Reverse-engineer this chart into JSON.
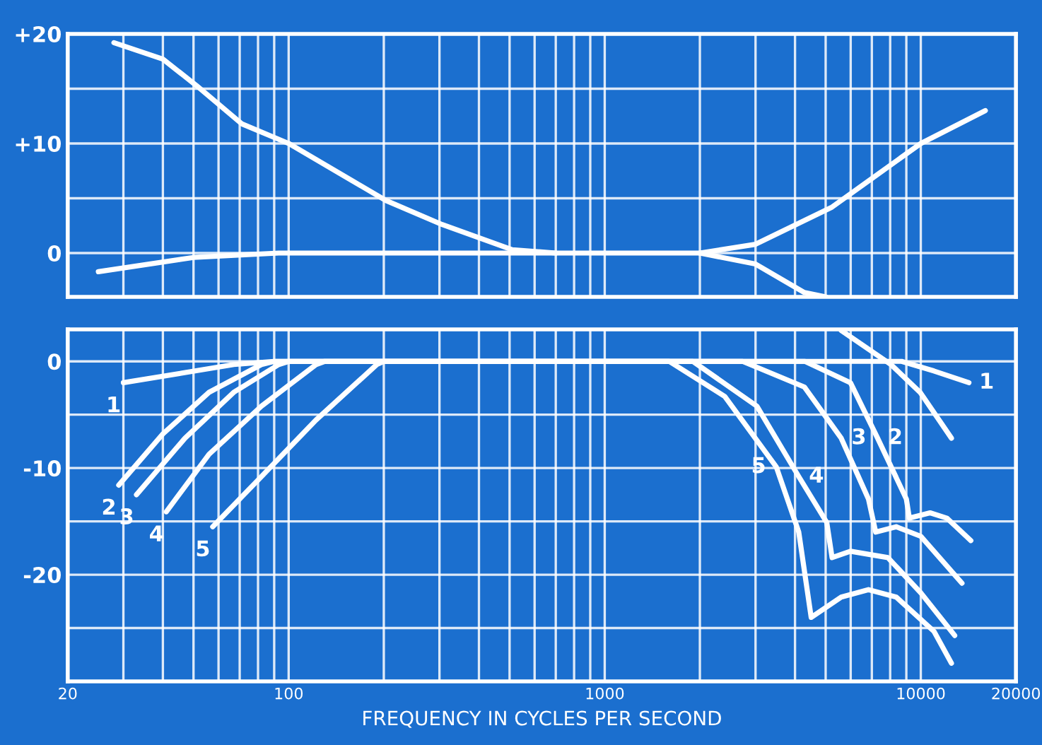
{
  "chart_data": [
    {
      "type": "line",
      "xlim": [
        20,
        20000
      ],
      "ylim": [
        -4,
        20
      ],
      "log": "x",
      "grid": true,
      "tick_labels": "y",
      "line_style": "solid",
      "marker": "none",
      "xticks": [
        20,
        30,
        40,
        50,
        60,
        70,
        80,
        90,
        100,
        200,
        300,
        400,
        500,
        600,
        700,
        800,
        900,
        1000,
        2000,
        3000,
        4000,
        5000,
        6000,
        7000,
        8000,
        9000,
        10000,
        20000
      ],
      "yticks": [
        {
          "value": 20,
          "label": "+20"
        },
        {
          "value": 15,
          "label": null
        },
        {
          "value": 10,
          "label": "+10"
        },
        {
          "value": 5,
          "label": null
        },
        0
      ],
      "series": [
        {
          "color": "#ffffff",
          "x": [
            28,
            40,
            51,
            71,
            100,
            203,
            306,
            510,
            700
          ],
          "values": [
            19.2,
            17.7,
            15.3,
            11.8,
            10,
            4.8,
            2.6,
            0.3,
            0
          ]
        },
        {
          "color": "#ffffff",
          "x": [
            25,
            50,
            93,
            2000,
            3000,
            4280,
            5000
          ],
          "values": [
            -1.7,
            -0.4,
            0,
            0,
            -1,
            -3.6,
            -4
          ]
        },
        {
          "color": "#ffffff",
          "x": [
            2000,
            3000,
            5240,
            10000,
            16000
          ],
          "values": [
            0,
            0.8,
            4.2,
            10,
            13
          ]
        }
      ]
    },
    {
      "type": "line",
      "xlim": [
        20,
        20000
      ],
      "ylim": [
        -30,
        3
      ],
      "log": "x",
      "grid": true,
      "line_style": "solid",
      "marker": "none",
      "xlabel": "FREQUENCY IN CYCLES PER SECOND",
      "xticks": [
        20,
        {
          "value": 30,
          "label": null
        },
        {
          "value": 40,
          "label": null
        },
        {
          "value": 50,
          "label": null
        },
        {
          "value": 60,
          "label": null
        },
        {
          "value": 70,
          "label": null
        },
        {
          "value": 80,
          "label": null
        },
        {
          "value": 90,
          "label": null
        },
        100,
        {
          "value": 200,
          "label": null
        },
        {
          "value": 300,
          "label": null
        },
        {
          "value": 400,
          "label": null
        },
        {
          "value": 500,
          "label": null
        },
        {
          "value": 600,
          "label": null
        },
        {
          "value": 700,
          "label": null
        },
        {
          "value": 800,
          "label": null
        },
        {
          "value": 900,
          "label": null
        },
        1000,
        {
          "value": 2000,
          "label": null
        },
        {
          "value": 3000,
          "label": null
        },
        {
          "value": 4000,
          "label": null
        },
        {
          "value": 5000,
          "label": null
        },
        {
          "value": 6000,
          "label": null
        },
        {
          "value": 7000,
          "label": null
        },
        {
          "value": 8000,
          "label": null
        },
        {
          "value": 9000,
          "label": null
        },
        10000,
        20000
      ],
      "yticks": [
        0,
        {
          "value": -5,
          "label": null
        },
        {
          "value": -10,
          "label": "-10"
        },
        {
          "value": -15,
          "label": null
        },
        {
          "value": -20,
          "label": "-20"
        },
        {
          "value": -25,
          "label": null
        }
      ],
      "series": [
        {
          "name": "1",
          "color": "#ffffff",
          "x": [
            30,
            67,
            90,
            8700,
            11000,
            14200
          ],
          "values": [
            -2,
            -0.3,
            0,
            0,
            -0.9,
            -2
          ]
        },
        {
          "name": "2",
          "color": "#ffffff",
          "x": [
            29,
            40,
            56,
            82,
            90,
            4300,
            5990,
            7300,
            9000,
            9200,
            10700,
            12100,
            14400
          ],
          "values": [
            -11.6,
            -6.8,
            -2.9,
            -0.3,
            0,
            0,
            -2,
            -7.2,
            -12.9,
            -14.7,
            -14.2,
            -14.7,
            -16.8
          ]
        },
        {
          "name": "3",
          "color": "#ffffff",
          "x": [
            33,
            47,
            67,
            93,
            100,
            2730,
            4280,
            5600,
            6830,
            7200,
            8360,
            10000,
            13500
          ],
          "values": [
            -12.5,
            -7.2,
            -2.9,
            -0.3,
            0,
            0,
            -2.4,
            -7.2,
            -12.9,
            -16,
            -15.5,
            -16.4,
            -20.8
          ]
        },
        {
          "name": "4",
          "color": "#ffffff",
          "x": [
            41,
            56,
            82,
            122,
            130,
            1900,
            3030,
            4110,
            5040,
            5240,
            5990,
            7870,
            10000,
            12800
          ],
          "values": [
            -14.1,
            -8.7,
            -4.2,
            -0.3,
            0,
            0,
            -4.2,
            -10.8,
            -15.1,
            -18.4,
            -17.8,
            -18.4,
            -21.7,
            -25.7
          ]
        },
        {
          "name": "5",
          "color": "#ffffff",
          "x": [
            57.5,
            82,
            122,
            190,
            200,
            1600,
            2400,
            3490,
            4110,
            4500,
            5600,
            6830,
            8360,
            11000,
            12500
          ],
          "values": [
            -15.5,
            -10.8,
            -5.5,
            -0.3,
            0,
            0,
            -3.3,
            -9.9,
            -16,
            -24,
            -22.1,
            -21.4,
            -22.1,
            -25.3,
            -28.3
          ]
        },
        {
          "color": "#ffffff",
          "x": [
            5600,
            8050,
            9950,
            12500
          ],
          "values": [
            2.9,
            -0.3,
            -2.9,
            -7.2
          ]
        }
      ]
    }
  ]
}
